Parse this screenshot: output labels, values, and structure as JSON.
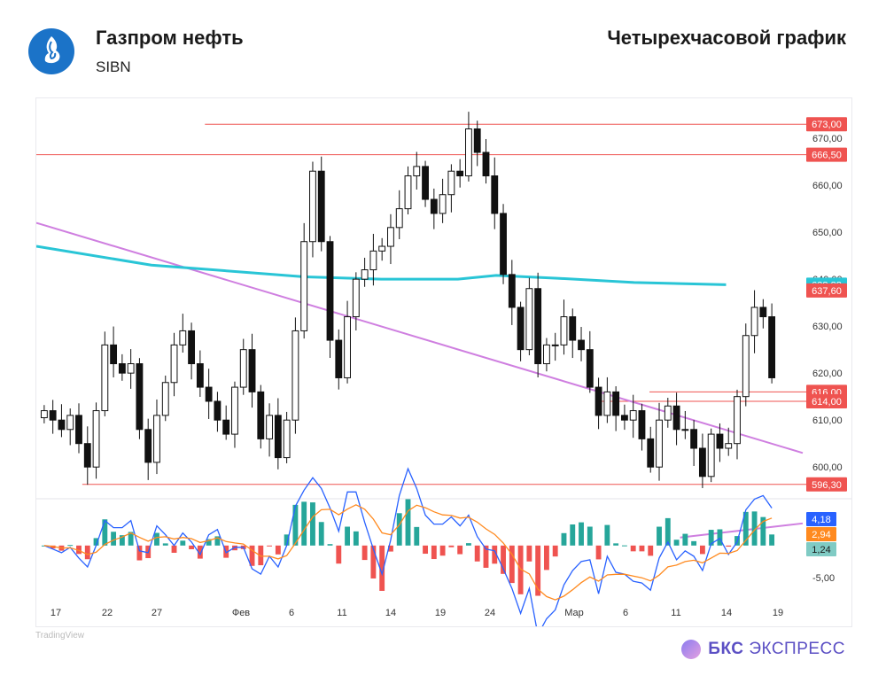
{
  "header": {
    "company": "Газпром нефть",
    "ticker": "SIBN",
    "chart_title": "Четырехчасовой график",
    "logo_icon": "gazpromneft-logo-icon"
  },
  "footer": {
    "brand_part1": "БКС",
    "brand_part2": "ЭКСПРЕСС",
    "brand_icon": "bks-logo-icon",
    "tv_mark": "TradingView"
  },
  "colors": {
    "up": "#26a69a",
    "down": "#ef5350",
    "candle": "#111111",
    "ma": "#29c5d6",
    "trend": "#cf7fe0",
    "level": "#ef5350",
    "macd": "#2962ff",
    "signal": "#ff8a1f"
  },
  "chart_data": [
    {
      "type": "candlestick",
      "title": "Четырехчасовой график",
      "ylim": [
        594,
        677
      ],
      "y_ticks": [
        "600,00",
        "610,00",
        "620,00",
        "630,00",
        "640,00",
        "650,00",
        "660,00",
        "670,00"
      ],
      "x_ticks": [
        "17",
        "22",
        "27",
        "Фев",
        "6",
        "11",
        "14",
        "19",
        "24",
        "Мар",
        "6",
        "11",
        "14",
        "19"
      ],
      "price_labels": [
        {
          "text": "673,00",
          "value": 673.0,
          "color": "#ef5350"
        },
        {
          "text": "666,50",
          "value": 666.5,
          "color": "#ef5350"
        },
        {
          "text": "638,82",
          "value": 638.82,
          "color": "#29c5d6"
        },
        {
          "text": "637,60",
          "value": 637.6,
          "color": "#ef5350"
        },
        {
          "text": "616,00",
          "value": 616.0,
          "color": "#ef5350"
        },
        {
          "text": "614,00",
          "value": 614.0,
          "color": "#ef5350"
        },
        {
          "text": "596,30",
          "value": 596.3,
          "color": "#ef5350"
        }
      ],
      "horizontal_levels": [
        {
          "value": 673.0,
          "x_from": 22
        },
        {
          "value": 666.5,
          "x_from": 0
        },
        {
          "value": 616.0,
          "x_from": 80
        },
        {
          "value": 614.0,
          "x_from": 73
        },
        {
          "value": 596.3,
          "x_from": 6
        }
      ],
      "trendline": [
        [
          0,
          652
        ],
        [
          100,
          603
        ],
        [
          100,
          588
        ],
        [
          84,
          585
        ]
      ],
      "ma_line": [
        [
          0,
          647
        ],
        [
          15,
          643
        ],
        [
          35,
          640.5
        ],
        [
          45,
          640
        ],
        [
          55,
          640
        ],
        [
          60,
          640.8
        ],
        [
          68,
          640.2
        ],
        [
          78,
          639.3
        ],
        [
          90,
          638.82
        ]
      ],
      "close_series": [
        612,
        610,
        608,
        611,
        605,
        600,
        612,
        626,
        622,
        620,
        622,
        608,
        601,
        611,
        618,
        626,
        629,
        622,
        617,
        614,
        610,
        607,
        617,
        625,
        616,
        606,
        611,
        602,
        610,
        629,
        648,
        663,
        648,
        627,
        619,
        632,
        640,
        642,
        646,
        647,
        651,
        655,
        662,
        664,
        657,
        654,
        658,
        663,
        662,
        672,
        667,
        662,
        654,
        641,
        634,
        625,
        638,
        622,
        626,
        626,
        632,
        627,
        625,
        617,
        611,
        616,
        611,
        610,
        612,
        606,
        600,
        610,
        613,
        608,
        608,
        604,
        598,
        607,
        604,
        605,
        615,
        628,
        634,
        632,
        619
      ]
    },
    {
      "type": "macd",
      "y_ticks": [
        "-5,00"
      ],
      "value_labels": [
        {
          "text": "4,18",
          "value": 4.18,
          "color": "#2962ff"
        },
        {
          "text": "2,94",
          "value": 2.94,
          "color": "#ff8a1f"
        },
        {
          "text": "1,24",
          "value": 1.24,
          "color": "#80cbc4"
        }
      ],
      "ylim": [
        -8.5,
        6.5
      ]
    }
  ]
}
